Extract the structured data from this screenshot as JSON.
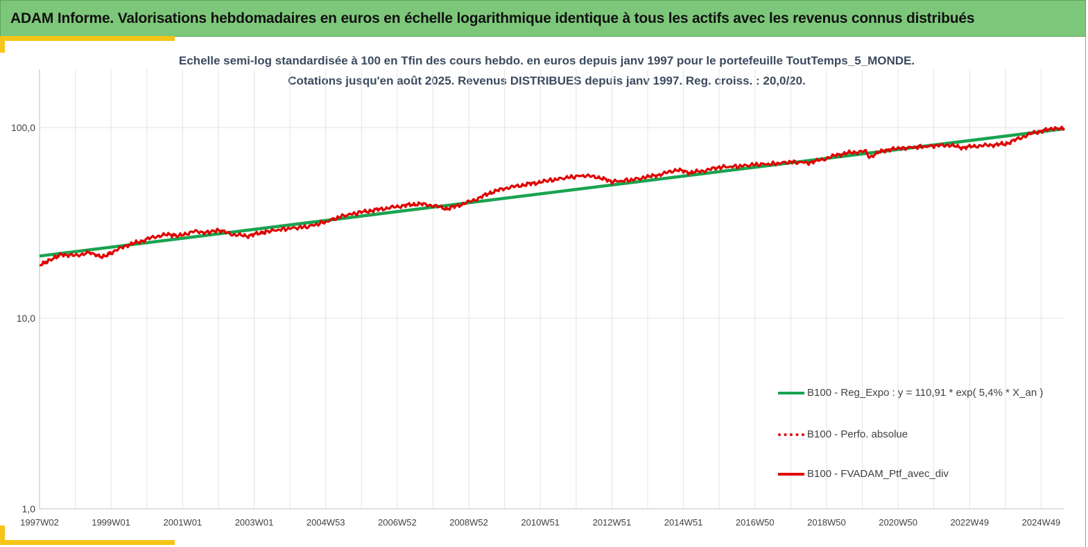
{
  "banner": {
    "title": "ADAM Informe. Valorisations hebdomadaires en euros en échelle logarithmique identique à tous les actifs avec les revenus connus distribués"
  },
  "chart_data": {
    "type": "line",
    "title": "Echelle semi-log standardisée à 100 en Tfin des cours hebdo.  en euros depuis janv 1997 pour le portefeuille ToutTemps_5_MONDE.",
    "subtitle": "Cotations  jusqu'en août 2025. Revenus DISTRIBUES depuis janv 1997. Reg. croiss. : 20,0/20.",
    "y_scale": "log",
    "ylim": [
      1,
      200
    ],
    "y_ticks": [
      {
        "value": 1,
        "label": "1,0"
      },
      {
        "value": 10,
        "label": "10,0"
      },
      {
        "value": 100,
        "label": "100,0"
      }
    ],
    "xlim": [
      1997.0,
      2025.65
    ],
    "x_ticks": [
      {
        "value": 1997.0,
        "label": "1997W02"
      },
      {
        "value": 1999.0,
        "label": "1999W01"
      },
      {
        "value": 2001.0,
        "label": "2001W01"
      },
      {
        "value": 2003.0,
        "label": "2003W01"
      },
      {
        "value": 2005.0,
        "label": "2004W53"
      },
      {
        "value": 2007.0,
        "label": "2006W52"
      },
      {
        "value": 2009.0,
        "label": "2008W52"
      },
      {
        "value": 2011.0,
        "label": "2010W51"
      },
      {
        "value": 2013.0,
        "label": "2012W51"
      },
      {
        "value": 2015.0,
        "label": "2014W51"
      },
      {
        "value": 2017.0,
        "label": "2016W50"
      },
      {
        "value": 2019.0,
        "label": "2018W50"
      },
      {
        "value": 2021.0,
        "label": "2020W50"
      },
      {
        "value": 2023.0,
        "label": "2022W49"
      },
      {
        "value": 2025.0,
        "label": "2024W49"
      }
    ],
    "grid": true,
    "legend_position": "bottom-right",
    "series": [
      {
        "name": "B100 - Reg_Expo : y = 110,91 * exp( 5,4% *  X_an )",
        "color": "#1aa350",
        "style": "solid",
        "x": [
          1997.0,
          2025.65
        ],
        "values": [
          21.2,
          98.5
        ]
      },
      {
        "name": "B100 - Perfo. absolue",
        "color": "#e00000",
        "style": "dotted",
        "x": [],
        "values": []
      },
      {
        "name": "B100 - FVADAM_Ptf_avec_div",
        "color": "#e00000",
        "style": "solid",
        "x": [
          1997.0,
          1997.3,
          1997.6,
          1998.0,
          1998.4,
          1998.75,
          1999.0,
          1999.4,
          1999.8,
          2000.2,
          2000.6,
          2000.9,
          2001.3,
          2001.7,
          2002.0,
          2002.4,
          2002.8,
          2003.2,
          2003.5,
          2004.0,
          2004.5,
          2005.0,
          2005.5,
          2006.0,
          2006.4,
          2006.8,
          2007.2,
          2007.6,
          2008.0,
          2008.4,
          2008.8,
          2009.2,
          2009.6,
          2010.0,
          2010.4,
          2010.8,
          2011.2,
          2011.7,
          2012.2,
          2012.6,
          2013.0,
          2013.5,
          2014.0,
          2014.4,
          2014.8,
          2015.2,
          2015.6,
          2016.0,
          2016.5,
          2017.0,
          2017.5,
          2018.0,
          2018.5,
          2018.9,
          2019.3,
          2019.7,
          2020.1,
          2020.2,
          2020.6,
          2021.0,
          2021.5,
          2022.0,
          2022.4,
          2022.8,
          2023.2,
          2023.6,
          2024.0,
          2024.4,
          2024.8,
          2025.2,
          2025.65
        ],
        "values": [
          19.0,
          20.2,
          21.6,
          21.3,
          22.1,
          20.9,
          22.0,
          24.0,
          25.2,
          26.7,
          27.5,
          27.0,
          28.5,
          28.2,
          29.0,
          27.5,
          27.0,
          28.0,
          28.8,
          29.6,
          30.2,
          32.0,
          34.5,
          36.0,
          37.0,
          38.0,
          39.0,
          39.8,
          39.0,
          37.5,
          39.5,
          42.0,
          45.5,
          48.0,
          49.5,
          51.0,
          52.5,
          54.5,
          56.0,
          55.0,
          52.0,
          53.0,
          55.0,
          57.0,
          60.0,
          58.0,
          59.5,
          62.0,
          62.5,
          64.0,
          64.5,
          66.0,
          65.5,
          68.0,
          72.0,
          74.0,
          75.0,
          70.0,
          76.0,
          77.5,
          79.0,
          80.0,
          81.0,
          78.5,
          80.0,
          81.0,
          82.0,
          88.0,
          94.0,
          97.5,
          99.0
        ]
      }
    ]
  }
}
